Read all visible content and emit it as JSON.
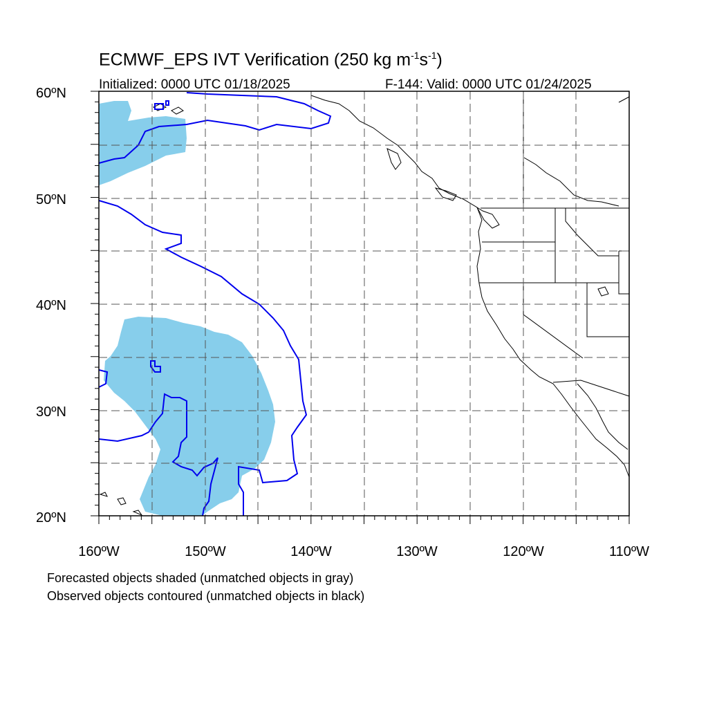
{
  "title_main": "ECMWF_EPS IVT Verification (250 kg m",
  "title_exp1": "-1",
  "title_mid": "s",
  "title_exp2": "-1",
  "title_end": ")",
  "subtitle_left": "Initialized: 0000 UTC 01/18/2025",
  "subtitle_right": "F-144: Valid: 0000 UTC 01/24/2025",
  "lat_labels": [
    "60ºN",
    "50ºN",
    "40ºN",
    "30ºN",
    "20ºN"
  ],
  "lon_labels": [
    "160ºW",
    "150ºW",
    "140ºW",
    "130ºW",
    "120ºW",
    "110ºW"
  ],
  "map": {
    "lon_range": [
      -160,
      -110
    ],
    "lat_range": [
      20,
      60
    ],
    "forecast_fill_color": "#87CEEB",
    "observed_contour_color": "#0000EE",
    "grid_style": "dashed"
  },
  "legend_notes": {
    "forecast": "Forecasted objects shaded (unmatched objects in gray)",
    "observed": "Observed objects contoured (unmatched objects in black)"
  }
}
